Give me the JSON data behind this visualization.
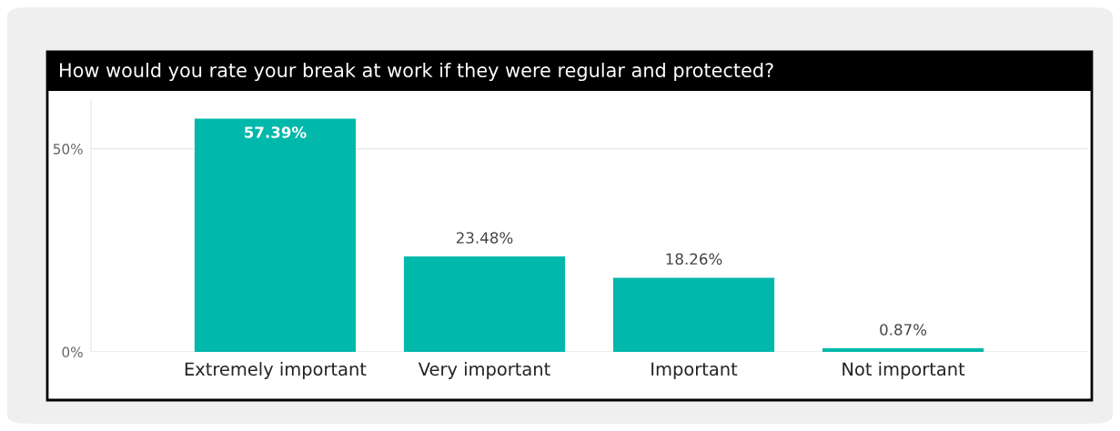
{
  "chart_data": {
    "type": "bar",
    "title": "How would you rate your break at work if they were regular and protected?",
    "categories": [
      "Extremely important",
      "Very important",
      "Important",
      "Not important"
    ],
    "values": [
      57.39,
      23.48,
      18.26,
      0.87
    ],
    "value_labels": [
      "57.39%",
      "23.48%",
      "18.26%",
      "0.87%"
    ],
    "color": "#01b8aa",
    "ylim": [
      0,
      62
    ],
    "yticks": [
      {
        "value": 0,
        "label": "0%"
      },
      {
        "value": 50,
        "label": "50%"
      }
    ],
    "grid": "y"
  }
}
